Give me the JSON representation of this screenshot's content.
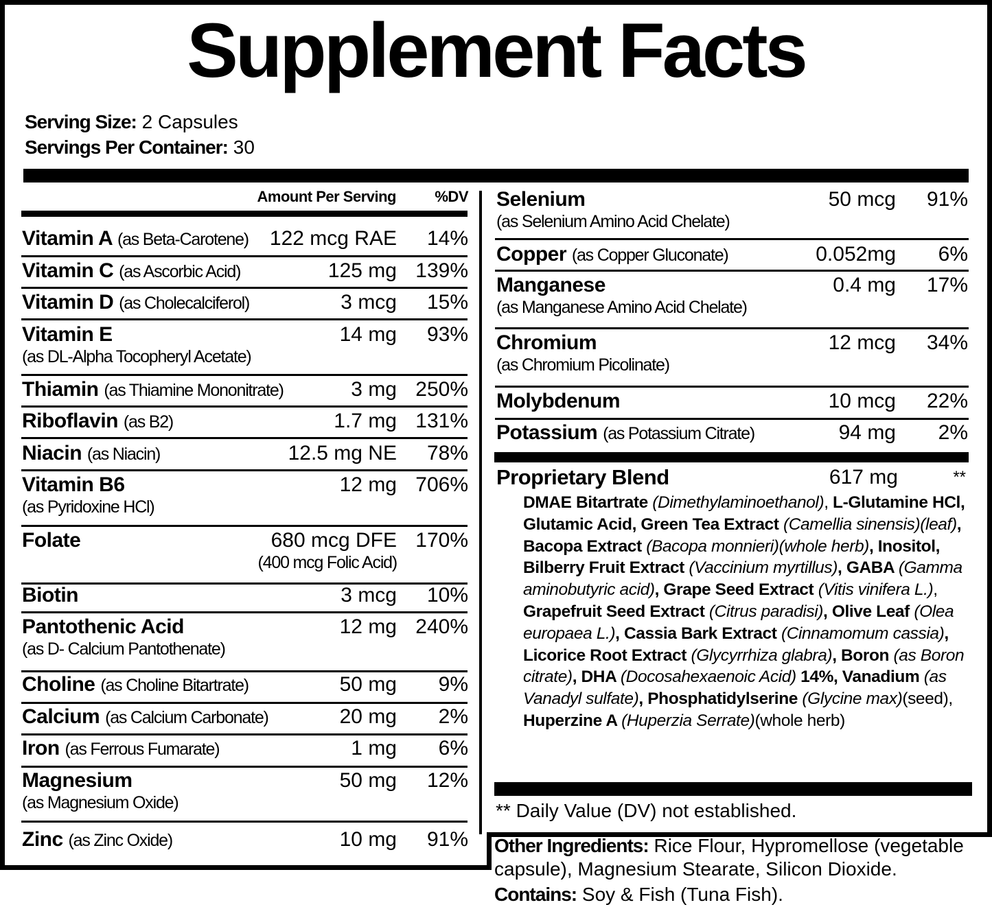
{
  "title": "Supplement Facts",
  "serving": {
    "size_label": "Serving Size:",
    "size_value": "2 Capsules",
    "per_container_label": "Servings Per Container:",
    "per_container_value": "30"
  },
  "headers": {
    "amount": "Amount Per Serving",
    "dv": "%DV"
  },
  "left_rows": [
    {
      "name": "Vitamin A",
      "source": "(as Beta-Carotene)",
      "amount": "122 mcg RAE",
      "dv": "14%"
    },
    {
      "name": "Vitamin C",
      "source": "(as Ascorbic Acid)",
      "amount": "125 mg",
      "dv": "139%"
    },
    {
      "name": "Vitamin D",
      "source": "(as Cholecalciferol)",
      "amount": "3 mcg",
      "dv": "15%"
    },
    {
      "name": "Vitamin E",
      "sub": "(as DL-Alpha Tocopheryl Acetate)",
      "amount": "14 mg",
      "dv": "93%"
    },
    {
      "name": "Thiamin",
      "source": "(as Thiamine Mononitrate)",
      "amount": "3 mg",
      "dv": "250%"
    },
    {
      "name": "Riboflavin",
      "source": "(as B2)",
      "amount": "1.7 mg",
      "dv": "131%"
    },
    {
      "name": "Niacin",
      "source": "(as Niacin)",
      "amount": "12.5 mg NE",
      "dv": "78%"
    },
    {
      "name": "Vitamin B6",
      "sub": "(as Pyridoxine HCl)",
      "amount": "12 mg",
      "dv": "706%"
    },
    {
      "name": "Folate",
      "amount": "680 mcg DFE",
      "amount_sub": "(400 mcg Folic Acid)",
      "dv": "170%"
    },
    {
      "name": "Biotin",
      "amount": "3 mcg",
      "dv": "10%"
    },
    {
      "name": "Pantothenic Acid",
      "sub": "(as D- Calcium Pantothenate)",
      "amount": "12 mg",
      "dv": "240%"
    },
    {
      "name": "Choline",
      "source": "(as Choline Bitartrate)",
      "amount": "50 mg",
      "dv": "9%"
    },
    {
      "name": "Calcium",
      "source": "(as Calcium Carbonate)",
      "amount": "20 mg",
      "dv": "2%"
    },
    {
      "name": "Iron",
      "source": "(as Ferrous Fumarate)",
      "amount": "1 mg",
      "dv": "6%"
    },
    {
      "name": "Magnesium",
      "sub": "(as Magnesium Oxide)",
      "amount": "50 mg",
      "dv": "12%"
    },
    {
      "name": "Zinc",
      "source": "(as Zinc Oxide)",
      "amount": "10 mg",
      "dv": "91%"
    }
  ],
  "right_rows": [
    {
      "name": "Selenium",
      "sub": "(as Selenium Amino Acid Chelate)",
      "amount": "50 mcg",
      "dv": "91%"
    },
    {
      "name": "Copper",
      "source": "(as Copper Gluconate)",
      "amount": "0.052mg",
      "dv": "6%"
    },
    {
      "name": "Manganese",
      "sub": "(as Manganese Amino Acid Chelate)",
      "amount": "0.4 mg",
      "dv": "17%"
    },
    {
      "name": "Chromium",
      "sub": "(as Chromium Picolinate)",
      "amount": "12 mcg",
      "dv": "34%"
    },
    {
      "name": "Molybdenum",
      "amount": "10 mcg",
      "dv": "22%"
    },
    {
      "name": "Potassium",
      "source": "(as Potassium Citrate)",
      "amount": "94 mg",
      "dv": "2%"
    }
  ],
  "blend": {
    "name": "Proprietary Blend",
    "amount": "617 mg",
    "dv": "**",
    "segments": [
      [
        "b",
        "DMAE Bitartrate "
      ],
      [
        "i",
        "(Dimethylaminoethanol)"
      ],
      [
        "n",
        ", "
      ],
      [
        "b",
        "L-Glutamine HCl, Glutamic Acid, Green Tea Extract "
      ],
      [
        "i",
        "(Camellia sinensis)(leaf)"
      ],
      [
        "b",
        ", Bacopa Extract "
      ],
      [
        "i",
        "(Bacopa monnieri)(whole herb)"
      ],
      [
        "b",
        ", Inositol, Bilberry Fruit Extract "
      ],
      [
        "i",
        "(Vaccinium myrtillus)"
      ],
      [
        "b",
        ", GABA "
      ],
      [
        "i",
        "(Gamma aminobutyric acid)"
      ],
      [
        "b",
        ", Grape Seed Extract "
      ],
      [
        "i",
        "(Vitis vinifera L.)"
      ],
      [
        "n",
        ", "
      ],
      [
        "b",
        "Grapefruit Seed Extract "
      ],
      [
        "i",
        "(Citrus paradisi)"
      ],
      [
        "b",
        ", Olive Leaf "
      ],
      [
        "i",
        "(Olea europaea L.)"
      ],
      [
        "b",
        ", Cassia Bark Extract "
      ],
      [
        "i",
        "(Cinnamomum cassia)"
      ],
      [
        "b",
        ", Licorice Root Extract "
      ],
      [
        "i",
        "(Glycyrrhiza glabra)"
      ],
      [
        "b",
        ", Boron "
      ],
      [
        "i",
        "(as Boron citrate)"
      ],
      [
        "b",
        ", DHA "
      ],
      [
        "i",
        "(Docosahexaenoic Acid) "
      ],
      [
        "b",
        "14%, Vanadium "
      ],
      [
        "i",
        "(as Vanadyl sulfate)"
      ],
      [
        "b",
        ", Phosphatidylserine "
      ],
      [
        "i",
        "(Glycine max)"
      ],
      [
        "n",
        "(seed),"
      ],
      [
        "n",
        " "
      ],
      [
        "b",
        "Huperzine A "
      ],
      [
        "i",
        "(Huperzia Serrate)"
      ],
      [
        "n",
        "(whole herb)"
      ]
    ]
  },
  "footnote": "** Daily Value (DV) not established.",
  "other": {
    "label": "Other Ingredients:",
    "text": " Rice Flour, Hypromellose (vegetable capsule), Magnesium Stearate, Silicon Dioxide.",
    "contains_label": "Contains:",
    "contains_text": " Soy & Fish (Tuna Fish)."
  }
}
